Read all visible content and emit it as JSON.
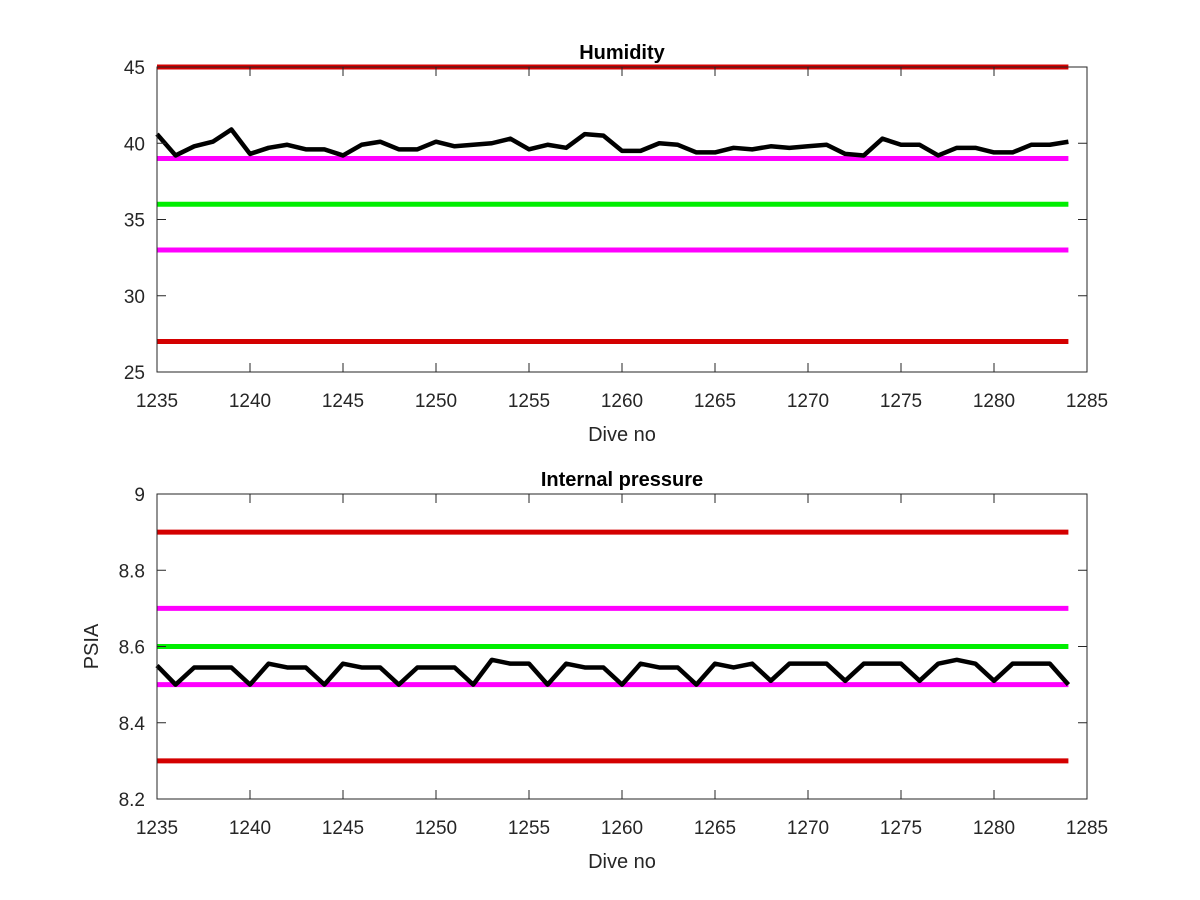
{
  "chart_data": [
    {
      "type": "line",
      "title": "Humidity",
      "xlabel": "Dive no",
      "ylabel": "",
      "xlim": [
        1235,
        1285
      ],
      "ylim": [
        25,
        45
      ],
      "xticks": [
        1235,
        1240,
        1245,
        1250,
        1255,
        1260,
        1265,
        1270,
        1275,
        1280,
        1285
      ],
      "yticks": [
        25,
        30,
        35,
        40,
        45
      ],
      "grid": false,
      "reference_lines": [
        {
          "y": 45,
          "color": "#d40000"
        },
        {
          "y": 39,
          "color": "#ff00ff"
        },
        {
          "y": 36,
          "color": "#00ee00"
        },
        {
          "y": 33,
          "color": "#ff00ff"
        },
        {
          "y": 27,
          "color": "#d40000"
        }
      ],
      "series": [
        {
          "color": "#000000",
          "x": [
            1235,
            1236,
            1237,
            1238,
            1239,
            1240,
            1241,
            1242,
            1243,
            1244,
            1245,
            1246,
            1247,
            1248,
            1249,
            1250,
            1251,
            1252,
            1253,
            1254,
            1255,
            1256,
            1257,
            1258,
            1259,
            1260,
            1261,
            1262,
            1263,
            1264,
            1265,
            1266,
            1267,
            1268,
            1269,
            1270,
            1271,
            1272,
            1273,
            1274,
            1275,
            1276,
            1277,
            1278,
            1279,
            1280,
            1281,
            1282,
            1283,
            1284
          ],
          "values": [
            40.6,
            39.2,
            39.8,
            40.1,
            40.9,
            39.3,
            39.7,
            39.9,
            39.6,
            39.6,
            39.2,
            39.9,
            40.1,
            39.6,
            39.6,
            40.1,
            39.8,
            39.9,
            40.0,
            40.3,
            39.6,
            39.9,
            39.7,
            40.6,
            40.5,
            39.5,
            39.5,
            40.0,
            39.9,
            39.4,
            39.4,
            39.7,
            39.6,
            39.8,
            39.7,
            39.8,
            39.9,
            39.3,
            39.2,
            40.3,
            39.9,
            39.9,
            39.2,
            39.7,
            39.7,
            39.4,
            39.4,
            39.9,
            39.9,
            40.1
          ]
        }
      ]
    },
    {
      "type": "line",
      "title": "Internal pressure",
      "xlabel": "Dive no",
      "ylabel": "PSIA",
      "xlim": [
        1235,
        1285
      ],
      "ylim": [
        8.2,
        9
      ],
      "xticks": [
        1235,
        1240,
        1245,
        1250,
        1255,
        1260,
        1265,
        1270,
        1275,
        1280,
        1285
      ],
      "yticks": [
        8.2,
        8.4,
        8.6,
        8.8,
        9
      ],
      "grid": false,
      "reference_lines": [
        {
          "y": 8.9,
          "color": "#d40000"
        },
        {
          "y": 8.7,
          "color": "#ff00ff"
        },
        {
          "y": 8.6,
          "color": "#00ee00"
        },
        {
          "y": 8.5,
          "color": "#ff00ff"
        },
        {
          "y": 8.3,
          "color": "#d40000"
        }
      ],
      "series": [
        {
          "color": "#000000",
          "x": [
            1235,
            1236,
            1237,
            1238,
            1239,
            1240,
            1241,
            1242,
            1243,
            1244,
            1245,
            1246,
            1247,
            1248,
            1249,
            1250,
            1251,
            1252,
            1253,
            1254,
            1255,
            1256,
            1257,
            1258,
            1259,
            1260,
            1261,
            1262,
            1263,
            1264,
            1265,
            1266,
            1267,
            1268,
            1269,
            1270,
            1271,
            1272,
            1273,
            1274,
            1275,
            1276,
            1277,
            1278,
            1279,
            1280,
            1281,
            1282,
            1283,
            1284
          ],
          "values": [
            8.55,
            8.5,
            8.545,
            8.545,
            8.545,
            8.5,
            8.555,
            8.545,
            8.545,
            8.5,
            8.555,
            8.545,
            8.545,
            8.5,
            8.545,
            8.545,
            8.545,
            8.5,
            8.565,
            8.555,
            8.555,
            8.5,
            8.555,
            8.545,
            8.545,
            8.5,
            8.555,
            8.545,
            8.545,
            8.5,
            8.555,
            8.545,
            8.555,
            8.51,
            8.555,
            8.555,
            8.555,
            8.51,
            8.555,
            8.555,
            8.555,
            8.51,
            8.555,
            8.565,
            8.555,
            8.51,
            8.555,
            8.555,
            8.555,
            8.5
          ]
        }
      ]
    }
  ]
}
